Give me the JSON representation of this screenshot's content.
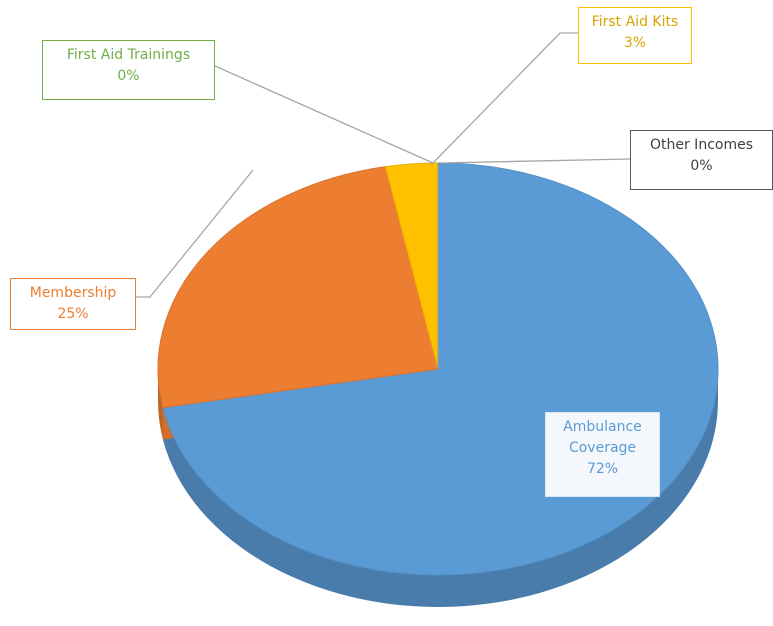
{
  "chart_data": {
    "type": "pie",
    "categories": [
      "Ambulance Coverage",
      "Membership",
      "First Aid Kits",
      "First Aid Trainings",
      "Other Incomes"
    ],
    "values": [
      72,
      25,
      3,
      0,
      0
    ],
    "value_labels": [
      "72%",
      "25%",
      "3%",
      "0%",
      "0%"
    ],
    "colors": [
      "#5b9bd5",
      "#ed7d31",
      "#ffc000",
      "#70ad47",
      "#a5a5a5"
    ],
    "start_angle": 0,
    "direction": "clockwise"
  }
}
